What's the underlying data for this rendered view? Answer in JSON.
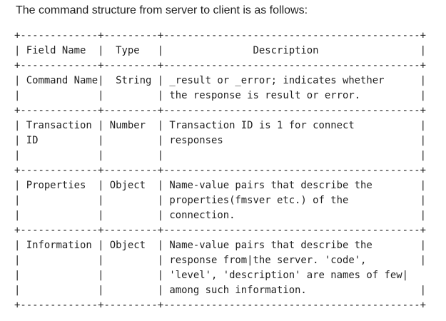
{
  "document": {
    "heading": "The command structure from server to client is as follows:",
    "table_lines": [
      "+-------------+---------+-------------------------------------------+",
      "| Field Name  |  Type   |               Description                 |",
      "+-------------+---------+-------------------------------------------+",
      "| Command Name|  String | _result or _error; indicates whether      |",
      "|             |         | the response is result or error.          |",
      "+-------------+---------+-------------------------------------------+",
      "| Transaction | Number  | Transaction ID is 1 for connect           |",
      "| ID          |         | responses                                 |",
      "|             |         |                                           |",
      "+-------------+---------+-------------------------------------------+",
      "| Properties  | Object  | Name-value pairs that describe the        |",
      "|             |         | properties(fmsver etc.) of the            |",
      "|             |         | connection.                               |",
      "+-------------+---------+-------------------------------------------+",
      "| Information | Object  | Name-value pairs that describe the        |",
      "|             |         | response from|the server. 'code',         |",
      "|             |         | 'level', 'description' are names of few|",
      "|             |         | among such information.                   |",
      "+-------------+---------+-------------------------------------------+"
    ]
  }
}
